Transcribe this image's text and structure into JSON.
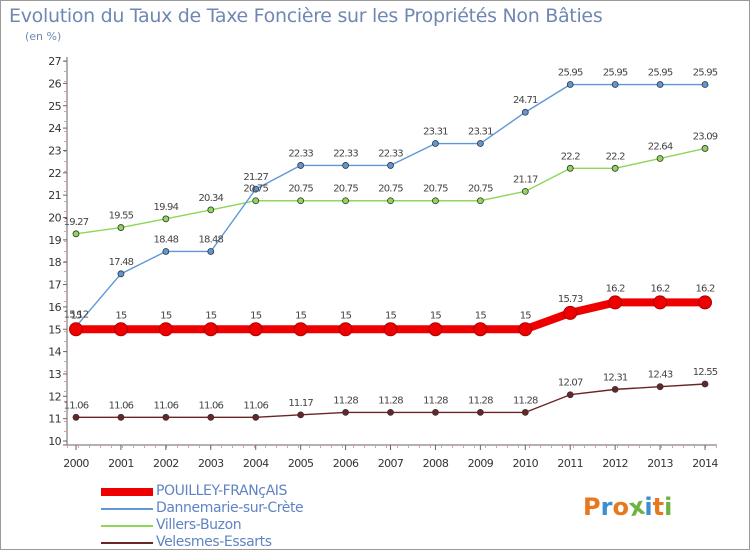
{
  "header": {
    "title": "Evolution du Taux de Taxe Foncière sur les Propriétés Non Bâties",
    "subtitle": "(en %)"
  },
  "logo": {
    "text": "Proxiti",
    "colors": [
      "#e8781e",
      "#3d8fd0",
      "#e8781e",
      "#6cb33f",
      "#3d8fd0",
      "#e8781e",
      "#6cb33f"
    ]
  },
  "chart_data": {
    "type": "line",
    "title": "Evolution du Taux de Taxe Foncière sur les Propriétés Non Bâties",
    "ylabel": "(en %)",
    "xlabel": "",
    "x": [
      "2000",
      "2001",
      "2002",
      "2003",
      "2004",
      "2005",
      "2006",
      "2007",
      "2008",
      "2009",
      "2010",
      "2011",
      "2012",
      "2013",
      "2014"
    ],
    "ylim": [
      10,
      27
    ],
    "yticks": [
      10,
      11,
      12,
      13,
      14,
      15,
      16,
      17,
      18,
      19,
      20,
      21,
      22,
      23,
      24,
      25,
      26,
      27
    ],
    "grid": false,
    "legend_position": "bottom-left",
    "series": [
      {
        "name": "POUILLEY-FRANçAIS",
        "color": "#ee0000",
        "width": 8,
        "values": [
          15,
          15,
          15,
          15,
          15,
          15,
          15,
          15,
          15,
          15,
          15,
          15.73,
          16.2,
          16.2,
          16.2
        ],
        "labels": [
          "15",
          "15",
          "15",
          "15",
          "15",
          "15",
          "15",
          "15",
          "15",
          "15",
          "15",
          "15.73",
          "16.2",
          "16.2",
          "16.2"
        ]
      },
      {
        "name": "Dannemarie-sur-Crète",
        "color": "#5f97d6",
        "width": 1.4,
        "values": [
          15.12,
          17.48,
          18.48,
          18.48,
          21.27,
          22.33,
          22.33,
          22.33,
          23.31,
          23.31,
          24.71,
          25.95,
          25.95,
          25.95,
          25.95
        ],
        "labels": [
          "15.12",
          "17.48",
          "18.48",
          "18.48",
          "21.27",
          "22.33",
          "22.33",
          "22.33",
          "23.31",
          "23.31",
          "24.71",
          "25.95",
          "25.95",
          "25.95",
          "25.95"
        ]
      },
      {
        "name": "Villers-Buzon",
        "color": "#8fd65a",
        "width": 1.4,
        "values": [
          19.27,
          19.55,
          19.94,
          20.34,
          20.75,
          20.75,
          20.75,
          20.75,
          20.75,
          20.75,
          21.17,
          22.2,
          22.2,
          22.64,
          23.09
        ],
        "labels": [
          "19.27",
          "19.55",
          "19.94",
          "20.34",
          "20.75",
          "20.75",
          "20.75",
          "20.75",
          "20.75",
          "20.75",
          "21.17",
          "22.2",
          "22.2",
          "22.64",
          "23.09"
        ]
      },
      {
        "name": "Velesmes-Essarts",
        "color": "#6b2525",
        "width": 1.4,
        "values": [
          11.06,
          11.06,
          11.06,
          11.06,
          11.06,
          11.17,
          11.28,
          11.28,
          11.28,
          11.28,
          11.28,
          12.07,
          12.31,
          12.43,
          12.55
        ],
        "labels": [
          "11.06",
          "11.06",
          "11.06",
          "11.06",
          "11.06",
          "11.17",
          "11.28",
          "11.28",
          "11.28",
          "11.28",
          "11.28",
          "12.07",
          "12.31",
          "12.43",
          "12.55"
        ]
      }
    ]
  }
}
